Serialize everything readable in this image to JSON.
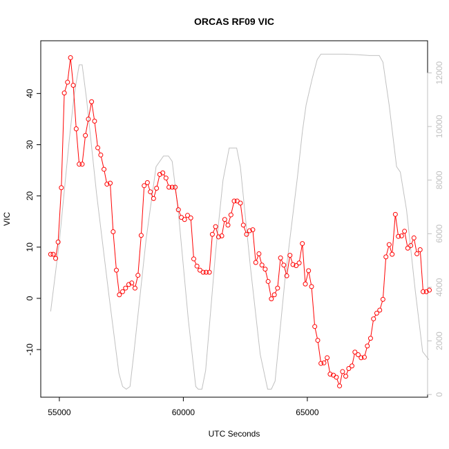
{
  "chart_data": {
    "type": "line",
    "title": "ORCAS RF09 VIC",
    "xlabel": "UTC Seconds",
    "ylabel": "VIC",
    "xlim": [
      54250,
      69850
    ],
    "ylim": [
      -19.3,
      50.3
    ],
    "y2lim": [
      -100,
      13200
    ],
    "x_ticks": [
      55000,
      60000,
      65000
    ],
    "y_ticks": [
      -10,
      0,
      10,
      20,
      30,
      40
    ],
    "y2_ticks": [
      0,
      2000,
      4000,
      6000,
      8000,
      10000,
      12000
    ],
    "grid": false,
    "colors": {
      "vic": "#ff0000",
      "altitude": "#c0c0c0",
      "axis": "#000000"
    },
    "series": [
      {
        "axis": "left",
        "style": "line-with-open-circles",
        "color": "#ff0000",
        "points": [
          [
            54650,
            8.6
          ],
          [
            54750,
            8.6
          ],
          [
            54850,
            7.8
          ],
          [
            54950,
            11.0
          ],
          [
            55080,
            21.6
          ],
          [
            55200,
            40.1
          ],
          [
            55330,
            42.2
          ],
          [
            55450,
            47.0
          ],
          [
            55560,
            41.6
          ],
          [
            55680,
            33.1
          ],
          [
            55800,
            26.2
          ],
          [
            55920,
            26.2
          ],
          [
            56050,
            31.8
          ],
          [
            56170,
            35.0
          ],
          [
            56300,
            38.4
          ],
          [
            56420,
            34.6
          ],
          [
            56550,
            29.4
          ],
          [
            56670,
            28.0
          ],
          [
            56800,
            25.2
          ],
          [
            56920,
            22.3
          ],
          [
            57050,
            22.5
          ],
          [
            57170,
            13.0
          ],
          [
            57300,
            5.5
          ],
          [
            57420,
            0.7
          ],
          [
            57550,
            1.3
          ],
          [
            57670,
            2.0
          ],
          [
            57800,
            2.7
          ],
          [
            57920,
            3.0
          ],
          [
            58050,
            2.0
          ],
          [
            58170,
            4.5
          ],
          [
            58300,
            12.3
          ],
          [
            58420,
            22.0
          ],
          [
            58550,
            22.6
          ],
          [
            58670,
            20.8
          ],
          [
            58800,
            19.5
          ],
          [
            58920,
            21.5
          ],
          [
            59050,
            24.2
          ],
          [
            59170,
            24.5
          ],
          [
            59300,
            23.5
          ],
          [
            59420,
            21.7
          ],
          [
            59550,
            21.7
          ],
          [
            59670,
            21.7
          ],
          [
            59800,
            17.3
          ],
          [
            59920,
            15.8
          ],
          [
            60050,
            15.4
          ],
          [
            60170,
            16.2
          ],
          [
            60300,
            15.7
          ],
          [
            60420,
            7.7
          ],
          [
            60550,
            6.3
          ],
          [
            60670,
            5.5
          ],
          [
            60800,
            5.1
          ],
          [
            60920,
            5.1
          ],
          [
            61050,
            5.1
          ],
          [
            61170,
            12.5
          ],
          [
            61300,
            14.0
          ],
          [
            61420,
            12.0
          ],
          [
            61550,
            12.2
          ],
          [
            61670,
            15.4
          ],
          [
            61800,
            14.3
          ],
          [
            61920,
            16.3
          ],
          [
            62050,
            19.0
          ],
          [
            62170,
            19.0
          ],
          [
            62300,
            18.6
          ],
          [
            62420,
            14.3
          ],
          [
            62550,
            12.5
          ],
          [
            62670,
            13.2
          ],
          [
            62800,
            13.4
          ],
          [
            62920,
            7.0
          ],
          [
            63050,
            8.7
          ],
          [
            63170,
            6.5
          ],
          [
            63300,
            5.7
          ],
          [
            63420,
            3.3
          ],
          [
            63550,
            -0.1
          ],
          [
            63670,
            0.7
          ],
          [
            63800,
            2.0
          ],
          [
            63920,
            7.9
          ],
          [
            64050,
            6.5
          ],
          [
            64170,
            4.4
          ],
          [
            64300,
            8.4
          ],
          [
            64420,
            6.6
          ],
          [
            64550,
            6.4
          ],
          [
            64670,
            6.9
          ],
          [
            64800,
            10.7
          ],
          [
            64920,
            2.8
          ],
          [
            65050,
            5.4
          ],
          [
            65170,
            2.3
          ],
          [
            65300,
            -5.5
          ],
          [
            65420,
            -8.2
          ],
          [
            65550,
            -12.7
          ],
          [
            65670,
            -12.6
          ],
          [
            65800,
            -11.6
          ],
          [
            65920,
            -14.8
          ],
          [
            66050,
            -15.0
          ],
          [
            66170,
            -15.4
          ],
          [
            66300,
            -17.1
          ],
          [
            66420,
            -14.3
          ],
          [
            66550,
            -15.2
          ],
          [
            66670,
            -13.7
          ],
          [
            66800,
            -13.2
          ],
          [
            66920,
            -10.5
          ],
          [
            67050,
            -11.0
          ],
          [
            67170,
            -11.6
          ],
          [
            67300,
            -11.5
          ],
          [
            67420,
            -9.3
          ],
          [
            67550,
            -7.8
          ],
          [
            67670,
            -4.0
          ],
          [
            67800,
            -2.9
          ],
          [
            67920,
            -2.3
          ],
          [
            68050,
            -0.2
          ],
          [
            68170,
            8.1
          ],
          [
            68300,
            10.5
          ],
          [
            68420,
            8.6
          ],
          [
            68550,
            16.4
          ],
          [
            68670,
            12.1
          ],
          [
            68800,
            12.2
          ],
          [
            68920,
            13.1
          ],
          [
            69050,
            9.8
          ],
          [
            69170,
            10.3
          ],
          [
            69300,
            11.8
          ],
          [
            69420,
            8.7
          ],
          [
            69550,
            9.5
          ],
          [
            69670,
            1.3
          ],
          [
            69800,
            1.3
          ],
          [
            69920,
            1.6
          ]
        ]
      },
      {
        "axis": "right",
        "style": "line",
        "color": "#c0c0c0",
        "points": [
          [
            54650,
            3100
          ],
          [
            55000,
            5700
          ],
          [
            55400,
            9500
          ],
          [
            55600,
            11200
          ],
          [
            55800,
            12300
          ],
          [
            55920,
            12300
          ],
          [
            56100,
            11000
          ],
          [
            56500,
            7500
          ],
          [
            57000,
            3700
          ],
          [
            57400,
            800
          ],
          [
            57550,
            300
          ],
          [
            57700,
            200
          ],
          [
            57850,
            300
          ],
          [
            58000,
            1500
          ],
          [
            58500,
            5800
          ],
          [
            58900,
            8500
          ],
          [
            59200,
            8900
          ],
          [
            59400,
            8900
          ],
          [
            59550,
            8700
          ],
          [
            59800,
            6800
          ],
          [
            60200,
            2800
          ],
          [
            60500,
            300
          ],
          [
            60600,
            200
          ],
          [
            60750,
            200
          ],
          [
            60900,
            900
          ],
          [
            61300,
            5300
          ],
          [
            61600,
            8000
          ],
          [
            61850,
            9200
          ],
          [
            62000,
            9200
          ],
          [
            62150,
            9200
          ],
          [
            62300,
            8500
          ],
          [
            62700,
            4800
          ],
          [
            63100,
            1500
          ],
          [
            63400,
            200
          ],
          [
            63550,
            200
          ],
          [
            63700,
            500
          ],
          [
            64100,
            4300
          ],
          [
            64600,
            8100
          ],
          [
            64800,
            9800
          ],
          [
            64950,
            10800
          ],
          [
            65200,
            11800
          ],
          [
            65400,
            12500
          ],
          [
            65550,
            12700
          ],
          [
            66000,
            12700
          ],
          [
            66500,
            12700
          ],
          [
            67000,
            12680
          ],
          [
            67500,
            12650
          ],
          [
            67900,
            12650
          ],
          [
            68050,
            12400
          ],
          [
            68300,
            10800
          ],
          [
            68600,
            8500
          ],
          [
            68750,
            8300
          ],
          [
            69000,
            6900
          ],
          [
            69350,
            3900
          ],
          [
            69650,
            1600
          ],
          [
            69900,
            1300
          ]
        ]
      }
    ]
  }
}
